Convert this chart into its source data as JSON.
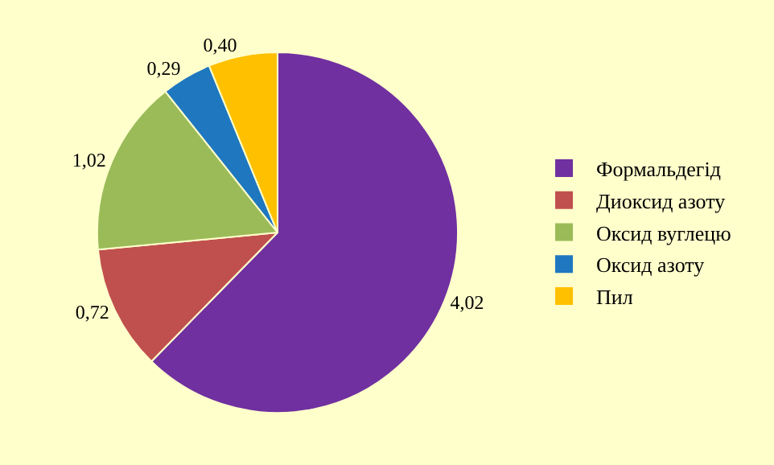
{
  "chart_data": {
    "type": "pie",
    "categories": [
      "Формальдегід",
      "Диоксид азоту",
      "Оксид вуглецю",
      "Оксид азоту",
      "Пил"
    ],
    "values": [
      4.02,
      0.72,
      1.02,
      0.29,
      0.4
    ],
    "value_labels": [
      "4,02",
      "0,72",
      "1,02",
      "0,29",
      "0,40"
    ],
    "colors": [
      "#7030a0",
      "#c0504d",
      "#9bbb59",
      "#1f77c0",
      "#ffc000"
    ],
    "legend": "right"
  }
}
